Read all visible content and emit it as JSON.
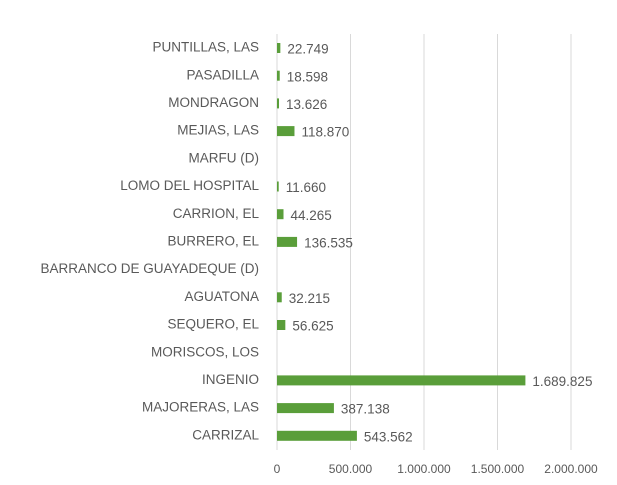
{
  "chart_data": {
    "type": "bar",
    "orientation": "horizontal",
    "categories": [
      "PUNTILLAS, LAS",
      "PASADILLA",
      "MONDRAGON",
      "MEJIAS, LAS",
      "MARFU (D)",
      "LOMO DEL HOSPITAL",
      "CARRION, EL",
      "BURRERO, EL",
      "BARRANCO DE GUAYADEQUE (D)",
      "AGUATONA",
      "SEQUERO, EL",
      "MORISCOS, LOS",
      "INGENIO",
      "MAJORERAS, LAS",
      "CARRIZAL"
    ],
    "values": [
      22749,
      18598,
      13626,
      118870,
      null,
      11660,
      44265,
      136535,
      null,
      32215,
      56625,
      null,
      1689825,
      387138,
      543562
    ],
    "value_labels": [
      "22.749",
      "18.598",
      "13.626",
      "118.870",
      null,
      "11.660",
      "44.265",
      "136.535",
      null,
      "32.215",
      "56.625",
      null,
      "1.689.825",
      "387.138",
      "543.562"
    ],
    "color": "#5a9e3a",
    "xlim": [
      0,
      2000000
    ],
    "xticks": [
      0,
      {
        "value": 500000,
        "label": "500.000"
      },
      {
        "value": 1000000,
        "label": "1.000.000"
      },
      {
        "value": 1500000,
        "label": "1.500.000"
      },
      {
        "value": 2000000,
        "label": "2.000.000"
      }
    ],
    "grid": true
  }
}
